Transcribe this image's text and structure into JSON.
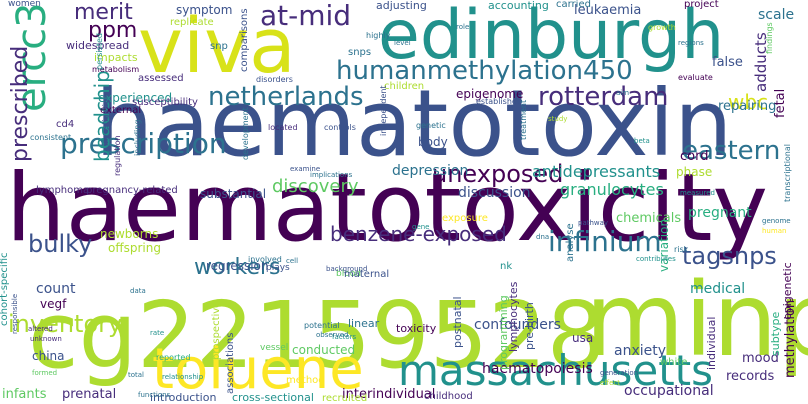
{
  "background": "#ffffff",
  "palette": {
    "dark_purple": "#440154",
    "indigo": "#472d7b",
    "blue": "#3b528b",
    "slate": "#2c728e",
    "teal": "#21918c",
    "green_teal": "#28ae80",
    "green": "#5ec962",
    "lime": "#addc30",
    "yellow": "#fde725"
  },
  "words": [
    "haematotoxicity",
    "haematotoxin",
    "cg22159528",
    "minp",
    "edinburgh",
    "viva",
    "toluene",
    "massachusetts",
    "ercc3",
    "humanmethylation450",
    "at-mid",
    "netherlands",
    "rotterdam",
    "prescription",
    "prescribed",
    "unexposed",
    "infinium",
    "tagsnps",
    "eastern",
    "benzene-exposed",
    "bulky",
    "inventory",
    "workers",
    "merit",
    "ppm",
    "beadchip",
    "wbc",
    "antidepressants",
    "granulocytes",
    "discovery",
    "epigenome",
    "depression",
    "discussion",
    "confounders",
    "interindividual",
    "haematopoiesis",
    "occupational",
    "records",
    "mood",
    "methylation",
    "anxiety",
    "medical",
    "pregnant",
    "cord",
    "phase",
    "repairing",
    "false",
    "adducts",
    "fetal",
    "scale",
    "leukaemia",
    "accounting",
    "carried",
    "project",
    "symptom",
    "adjusting",
    "women",
    "replicate",
    "comparisons",
    "snp",
    "snps",
    "impacts",
    "widespread",
    "experienced",
    "assessed",
    "metabolism",
    "external",
    "susceptibility",
    "children",
    "established",
    "evaluate",
    "disorders",
    "cd4",
    "lymphoma",
    "pregnancy-related",
    "substantial",
    "newborns",
    "offspring",
    "blood",
    "maternal",
    "nk",
    "risk",
    "analyse",
    "chemicals",
    "variation",
    "exposure",
    "gene",
    "dna",
    "count",
    "vegf",
    "china",
    "infants",
    "prenatal",
    "introduction",
    "cross-sectional",
    "recruited",
    "childhood",
    "conducted",
    "linear",
    "toxicity",
    "postnatal",
    "programming",
    "lymphocytes",
    "pre-birth",
    "usa",
    "white",
    "individual",
    "subtype",
    "epigenetic",
    "vessel",
    "prospective",
    "associations",
    "method",
    "regression",
    "reported",
    "relationship",
    "functions",
    "total",
    "rate",
    "data",
    "potential",
    "factors",
    "observed",
    "background",
    "plays",
    "involved",
    "cell",
    "body",
    "genetic",
    "located",
    "examine",
    "implications",
    "controls",
    "treatment",
    "independent",
    "including",
    "regulation",
    "investigation",
    "consistent",
    "development",
    "persisted",
    "level",
    "aim",
    "role",
    "highly",
    "growth",
    "regions",
    "findings",
    "genome",
    "transcriptional",
    "contributes",
    "measured",
    "beta",
    "study",
    "pathway",
    "altered",
    "unknown",
    "responsible",
    "cohort-specific",
    "formed",
    "generation",
    "human",
    "effect"
  ]
}
